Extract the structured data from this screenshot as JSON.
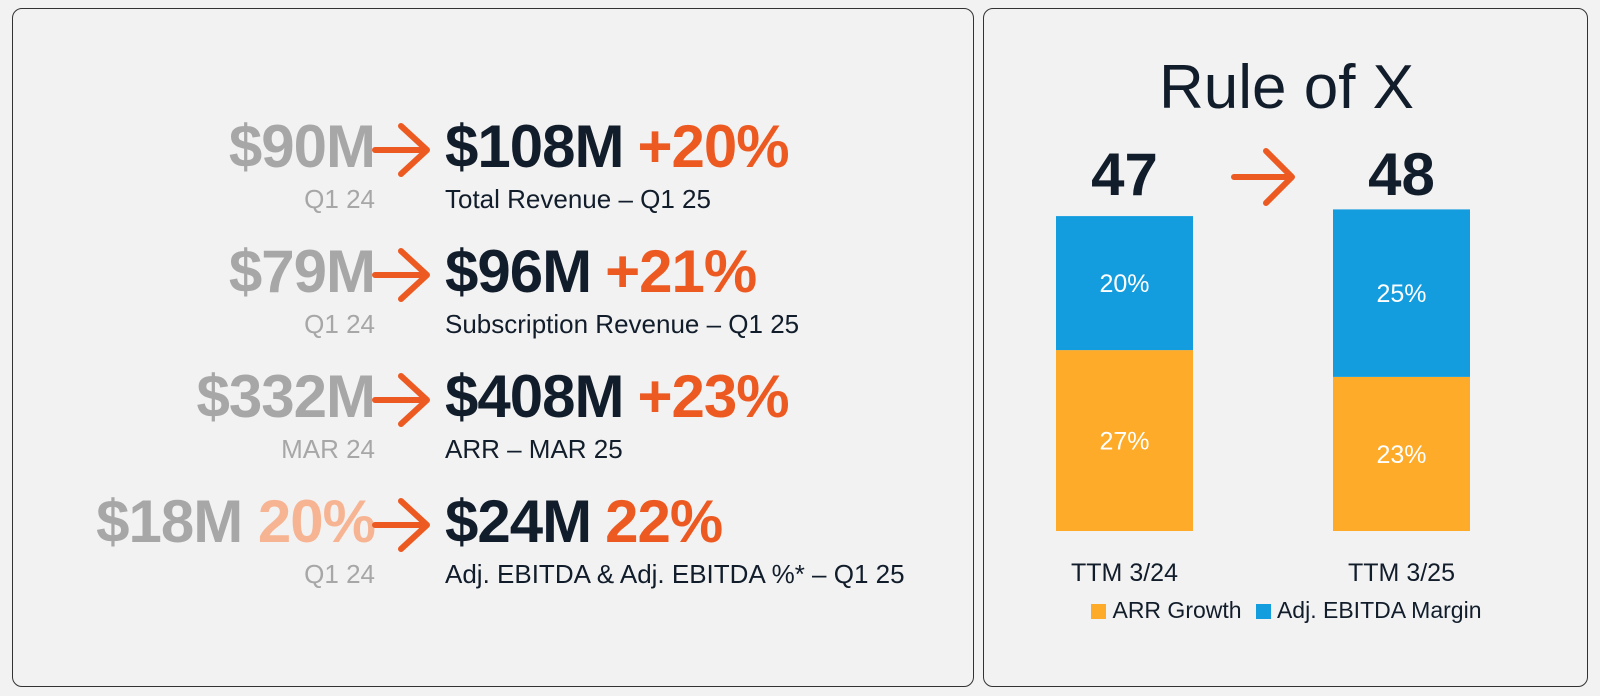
{
  "metrics": [
    {
      "prev": "$90M",
      "prev_pct": "",
      "prev_period": "Q1 24",
      "current": "$108M",
      "change": "+20%",
      "label": "Total Revenue – Q1 25"
    },
    {
      "prev": "$79M",
      "prev_pct": "",
      "prev_period": "Q1 24",
      "current": "$96M",
      "change": "+21%",
      "label": "Subscription Revenue – Q1 25"
    },
    {
      "prev": "$332M",
      "prev_pct": "",
      "prev_period": "MAR 24",
      "current": "$408M",
      "change": "+23%",
      "label": "ARR – MAR 25"
    },
    {
      "prev": "$18M",
      "prev_pct": "20%",
      "prev_period": "Q1 24",
      "current": "$24M",
      "change": "22%",
      "label": "Adj. EBITDA & Adj. EBITDA %* – Q1 25"
    }
  ],
  "chart_data": {
    "type": "bar",
    "stacked": true,
    "title": "Rule of X",
    "categories": [
      "TTM 3/24",
      "TTM 3/25"
    ],
    "totals": [
      "47",
      "48"
    ],
    "series": [
      {
        "name": "ARR Growth",
        "values": [
          27,
          23
        ],
        "labels": [
          "27%",
          "23%"
        ],
        "color": "#fdab28"
      },
      {
        "name": "Adj. EBITDA Margin",
        "values": [
          20,
          25
        ],
        "labels": [
          "20%",
          "25%"
        ],
        "color": "#139ddf"
      }
    ],
    "ylim": [
      0,
      50
    ],
    "grid": false,
    "legend": "bottom"
  },
  "colors": {
    "accent": "#ec5a22",
    "dark_text": "#121d2b",
    "muted_text": "#a7a7a7",
    "muted_accent": "#f7b493"
  },
  "icons": {
    "arrow": "arrow-right-icon"
  }
}
